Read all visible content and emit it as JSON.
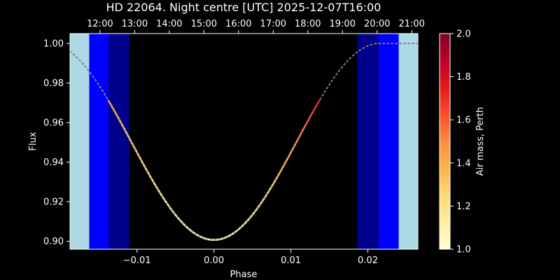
{
  "chart_data": {
    "type": "line",
    "title": "HD 22064. Night centre [UTC] 2025-12-07T16:00",
    "xlabel": "Phase",
    "ylabel": "Flux",
    "colorbar_label": "Air mass, Perth",
    "xlim": [
      -0.0187,
      0.0265
    ],
    "ylim": [
      0.896,
      1.005
    ],
    "xticks": [
      -0.01,
      0.0,
      0.01,
      0.02
    ],
    "xtick_labels": [
      "−0.01",
      "0.00",
      "0.01",
      "0.02"
    ],
    "yticks": [
      0.9,
      0.92,
      0.94,
      0.96,
      0.98,
      1.0
    ],
    "ytick_labels": [
      "0.90",
      "0.92",
      "0.94",
      "0.96",
      "0.98",
      "1.00"
    ],
    "top_axis": {
      "phase_positions": [
        -0.0148,
        -0.0103,
        -0.0058,
        -0.0013,
        0.0032,
        0.0077,
        0.0122,
        0.0167,
        0.0212,
        0.0257
      ],
      "labels": [
        "12:00",
        "13:00",
        "14:00",
        "15:00",
        "16:00",
        "17:00",
        "18:00",
        "19:00",
        "20:00",
        "21:00"
      ]
    },
    "colorbar": {
      "range": [
        1.0,
        2.0
      ],
      "ticks": [
        1.0,
        1.2,
        1.4,
        1.6,
        1.8,
        2.0
      ],
      "tick_labels": [
        "1.0",
        "1.2",
        "1.4",
        "1.6",
        "1.8",
        "2.0"
      ],
      "colormap": "YlOrRd"
    },
    "transit_model": {
      "center": 0.0,
      "depth": 0.0993,
      "halfwidth": 0.0215,
      "baseline": 1.0
    },
    "twilight_bands": [
      {
        "from": -0.0187,
        "to": -0.0162,
        "color": "#add8e6"
      },
      {
        "from": -0.0162,
        "to": -0.0137,
        "color": "#0000ff"
      },
      {
        "from": -0.0137,
        "to": -0.011,
        "color": "#00008b"
      },
      {
        "from": 0.0186,
        "to": 0.0214,
        "color": "#00008b"
      },
      {
        "from": 0.0214,
        "to": 0.024,
        "color": "#0000ff"
      },
      {
        "from": 0.024,
        "to": 0.0265,
        "color": "#add8e6"
      }
    ],
    "observable_window": {
      "from": -0.0137,
      "to": 0.0138
    },
    "airmass_track": {
      "phase": [
        -0.0137,
        -0.012,
        -0.01,
        -0.008,
        -0.006,
        -0.004,
        -0.002,
        0.0,
        0.002,
        0.004,
        0.006,
        0.008,
        0.01,
        0.012,
        0.0138
      ],
      "airmass": [
        1.42,
        1.32,
        1.23,
        1.16,
        1.11,
        1.07,
        1.05,
        1.05,
        1.07,
        1.11,
        1.18,
        1.28,
        1.42,
        1.6,
        1.78
      ]
    },
    "series": [
      {
        "style": "dotted",
        "color": "#808080"
      },
      {
        "style": "solid",
        "color_by": "airmass"
      }
    ]
  }
}
